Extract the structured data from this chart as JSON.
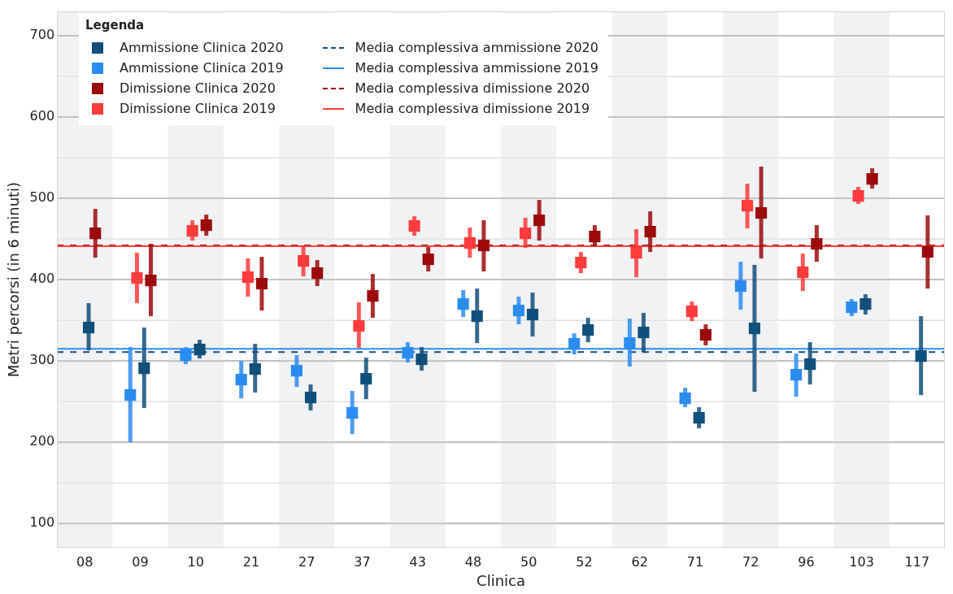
{
  "chart_data": {
    "type": "scatter",
    "xlabel": "Clinica",
    "ylabel": "Metri percorsi (in 6 minuti)",
    "legend_title": "Legenda",
    "legend": "top left",
    "marker": "square",
    "grid": "y",
    "categories": [
      "08",
      "09",
      "10",
      "21",
      "27",
      "37",
      "43",
      "48",
      "50",
      "52",
      "62",
      "71",
      "72",
      "96",
      "103",
      "117"
    ],
    "ylim": [
      70,
      730
    ],
    "yticks": [
      100,
      {
        "value": 150,
        "label": null
      },
      200,
      {
        "value": 250,
        "label": null
      },
      300,
      {
        "value": 350,
        "label": null
      },
      400,
      {
        "value": 450,
        "label": null
      },
      500,
      {
        "value": 550,
        "label": null
      },
      600,
      {
        "value": 650,
        "label": null
      },
      700
    ],
    "series": [
      {
        "name": "Ammissione Clinica 2020",
        "color": "#0f4f7b",
        "values": [
          341,
          291,
          314,
          290,
          255,
          278,
          302,
          355,
          357,
          338,
          335,
          230,
          340,
          296,
          370,
          306
        ],
        "errors": [
          [
            313,
            371
          ],
          [
            242,
            341
          ],
          [
            303,
            326
          ],
          [
            261,
            321
          ],
          [
            239,
            271
          ],
          [
            253,
            304
          ],
          [
            288,
            317
          ],
          [
            322,
            389
          ],
          [
            330,
            384
          ],
          [
            323,
            353
          ],
          [
            311,
            359
          ],
          [
            217,
            243
          ],
          [
            262,
            418
          ],
          [
            271,
            323
          ],
          [
            357,
            382
          ],
          [
            258,
            355
          ]
        ]
      },
      {
        "name": "Ammissione Clinica 2019",
        "color": "#2b8cf0",
        "values": [
          null,
          258,
          307,
          277,
          288,
          236,
          310,
          370,
          362,
          321,
          322,
          254,
          392,
          283,
          366,
          null
        ],
        "errors": [
          null,
          [
            200,
            317
          ],
          [
            296,
            317
          ],
          [
            254,
            300
          ],
          [
            268,
            307
          ],
          [
            210,
            263
          ],
          [
            298,
            323
          ],
          [
            354,
            387
          ],
          [
            345,
            379
          ],
          [
            308,
            334
          ],
          [
            293,
            352
          ],
          [
            243,
            267
          ],
          [
            363,
            422
          ],
          [
            256,
            309
          ],
          [
            355,
            376
          ],
          null
        ]
      },
      {
        "name": "Dimissione Clinica 2020",
        "color": "#9c0a0a",
        "values": [
          457,
          399,
          467,
          395,
          408,
          380,
          425,
          442,
          473,
          453,
          459,
          332,
          482,
          444,
          524,
          434
        ],
        "errors": [
          [
            427,
            487
          ],
          [
            355,
            444
          ],
          [
            454,
            480
          ],
          [
            362,
            428
          ],
          [
            392,
            424
          ],
          [
            353,
            407
          ],
          [
            410,
            440
          ],
          [
            410,
            473
          ],
          [
            448,
            498
          ],
          [
            441,
            467
          ],
          [
            434,
            484
          ],
          [
            319,
            345
          ],
          [
            426,
            539
          ],
          [
            422,
            467
          ],
          [
            512,
            537
          ],
          [
            389,
            479
          ]
        ]
      },
      {
        "name": "Dimissione Clinica 2019",
        "color": "#ff3b3b",
        "values": [
          null,
          402,
          460,
          403,
          423,
          343,
          466,
          445,
          457,
          421,
          433,
          361,
          491,
          409,
          503,
          null
        ],
        "errors": [
          null,
          [
            371,
            433
          ],
          [
            448,
            473
          ],
          [
            379,
            426
          ],
          [
            404,
            442
          ],
          [
            316,
            372
          ],
          [
            454,
            478
          ],
          [
            427,
            464
          ],
          [
            439,
            476
          ],
          [
            408,
            434
          ],
          [
            403,
            462
          ],
          [
            349,
            373
          ],
          [
            463,
            518
          ],
          [
            386,
            432
          ],
          [
            493,
            514
          ],
          null
        ]
      }
    ],
    "ref_lines": [
      {
        "axis": "y",
        "value": 311,
        "label": "Media complessiva ammissione 2020",
        "color": "#0f4f7b",
        "line_style": "dashed"
      },
      {
        "axis": "y",
        "value": 315,
        "label": "Media complessiva ammissione 2019",
        "color": "#2b8cf0",
        "line_style": "solid"
      },
      {
        "axis": "y",
        "value": 442,
        "label": "Media complessiva dimissione 2020",
        "color": "#9c0a0a",
        "line_style": "dashed"
      },
      {
        "axis": "y",
        "value": 441,
        "label": "Media complessiva dimissione 2019",
        "color": "#ff3b3b",
        "line_style": "solid"
      }
    ],
    "bands": [
      {
        "axis": "x",
        "from": "08",
        "to": "08",
        "color": "#f1f2f4"
      },
      {
        "axis": "x",
        "from": "10",
        "to": "10",
        "color": "#f1f2f4"
      },
      {
        "axis": "x",
        "from": "27",
        "to": "27",
        "color": "#f1f2f4"
      },
      {
        "axis": "x",
        "from": "43",
        "to": "43",
        "color": "#f1f2f4"
      },
      {
        "axis": "x",
        "from": "50",
        "to": "50",
        "color": "#f1f2f4"
      },
      {
        "axis": "x",
        "from": "62",
        "to": "62",
        "color": "#f1f2f4"
      },
      {
        "axis": "x",
        "from": "72",
        "to": "72",
        "color": "#f1f2f4"
      },
      {
        "axis": "x",
        "from": "103",
        "to": "103",
        "color": "#f1f2f4"
      }
    ]
  }
}
